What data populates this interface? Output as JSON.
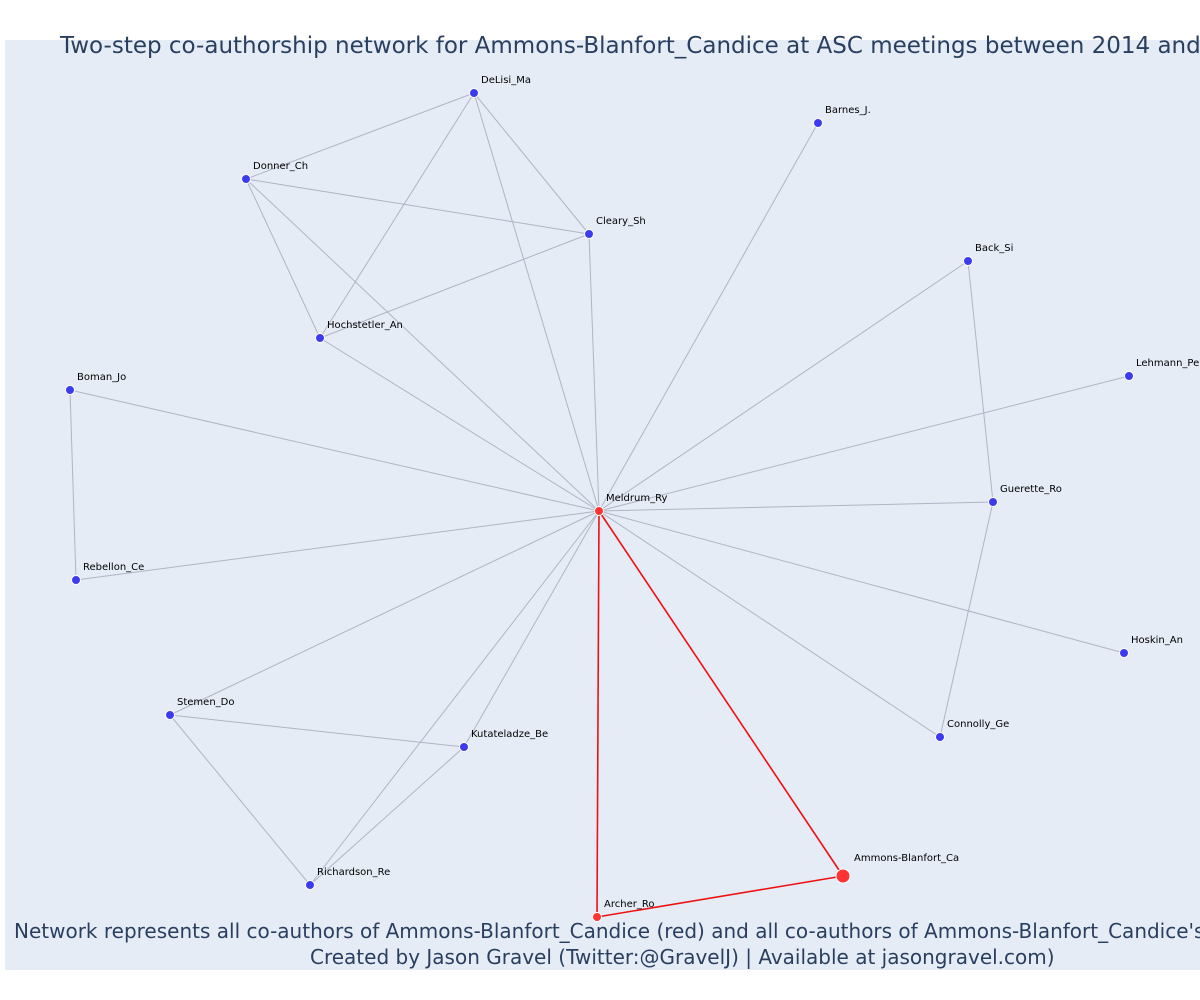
{
  "title": "Two-step co-authorship network for Ammons-Blanfort_Candice at ASC meetings between 2014 and",
  "nodes": [
    {
      "label": "DeLisi_Ma"
    },
    {
      "label": "Barnes_J."
    },
    {
      "label": "Donner_Ch"
    },
    {
      "label": "Cleary_Sh"
    },
    {
      "label": "Back_Si"
    },
    {
      "label": "Hochstetler_An"
    },
    {
      "label": "Lehmann_Pe"
    },
    {
      "label": "Boman_Jo"
    },
    {
      "label": "Meldrum_Ry"
    },
    {
      "label": "Guerette_Ro"
    },
    {
      "label": "Rebellon_Ce"
    },
    {
      "label": "Hoskin_An"
    },
    {
      "label": "Stemen_Do"
    },
    {
      "label": "Connolly_Ge"
    },
    {
      "label": "Kutateladze_Be"
    },
    {
      "label": "Ammons-Blanfort_Ca"
    },
    {
      "label": "Richardson_Re"
    },
    {
      "label": "Archer_Ro"
    }
  ],
  "footer": {
    "line1": "Network represents all co-authors of Ammons-Blanfort_Candice (red) and all co-authors of Ammons-Blanfort_Candice's co-autho",
    "line2": "Created by Jason Gravel (Twitter:@GravelJ) | Available at jasongravel.com)"
  }
}
